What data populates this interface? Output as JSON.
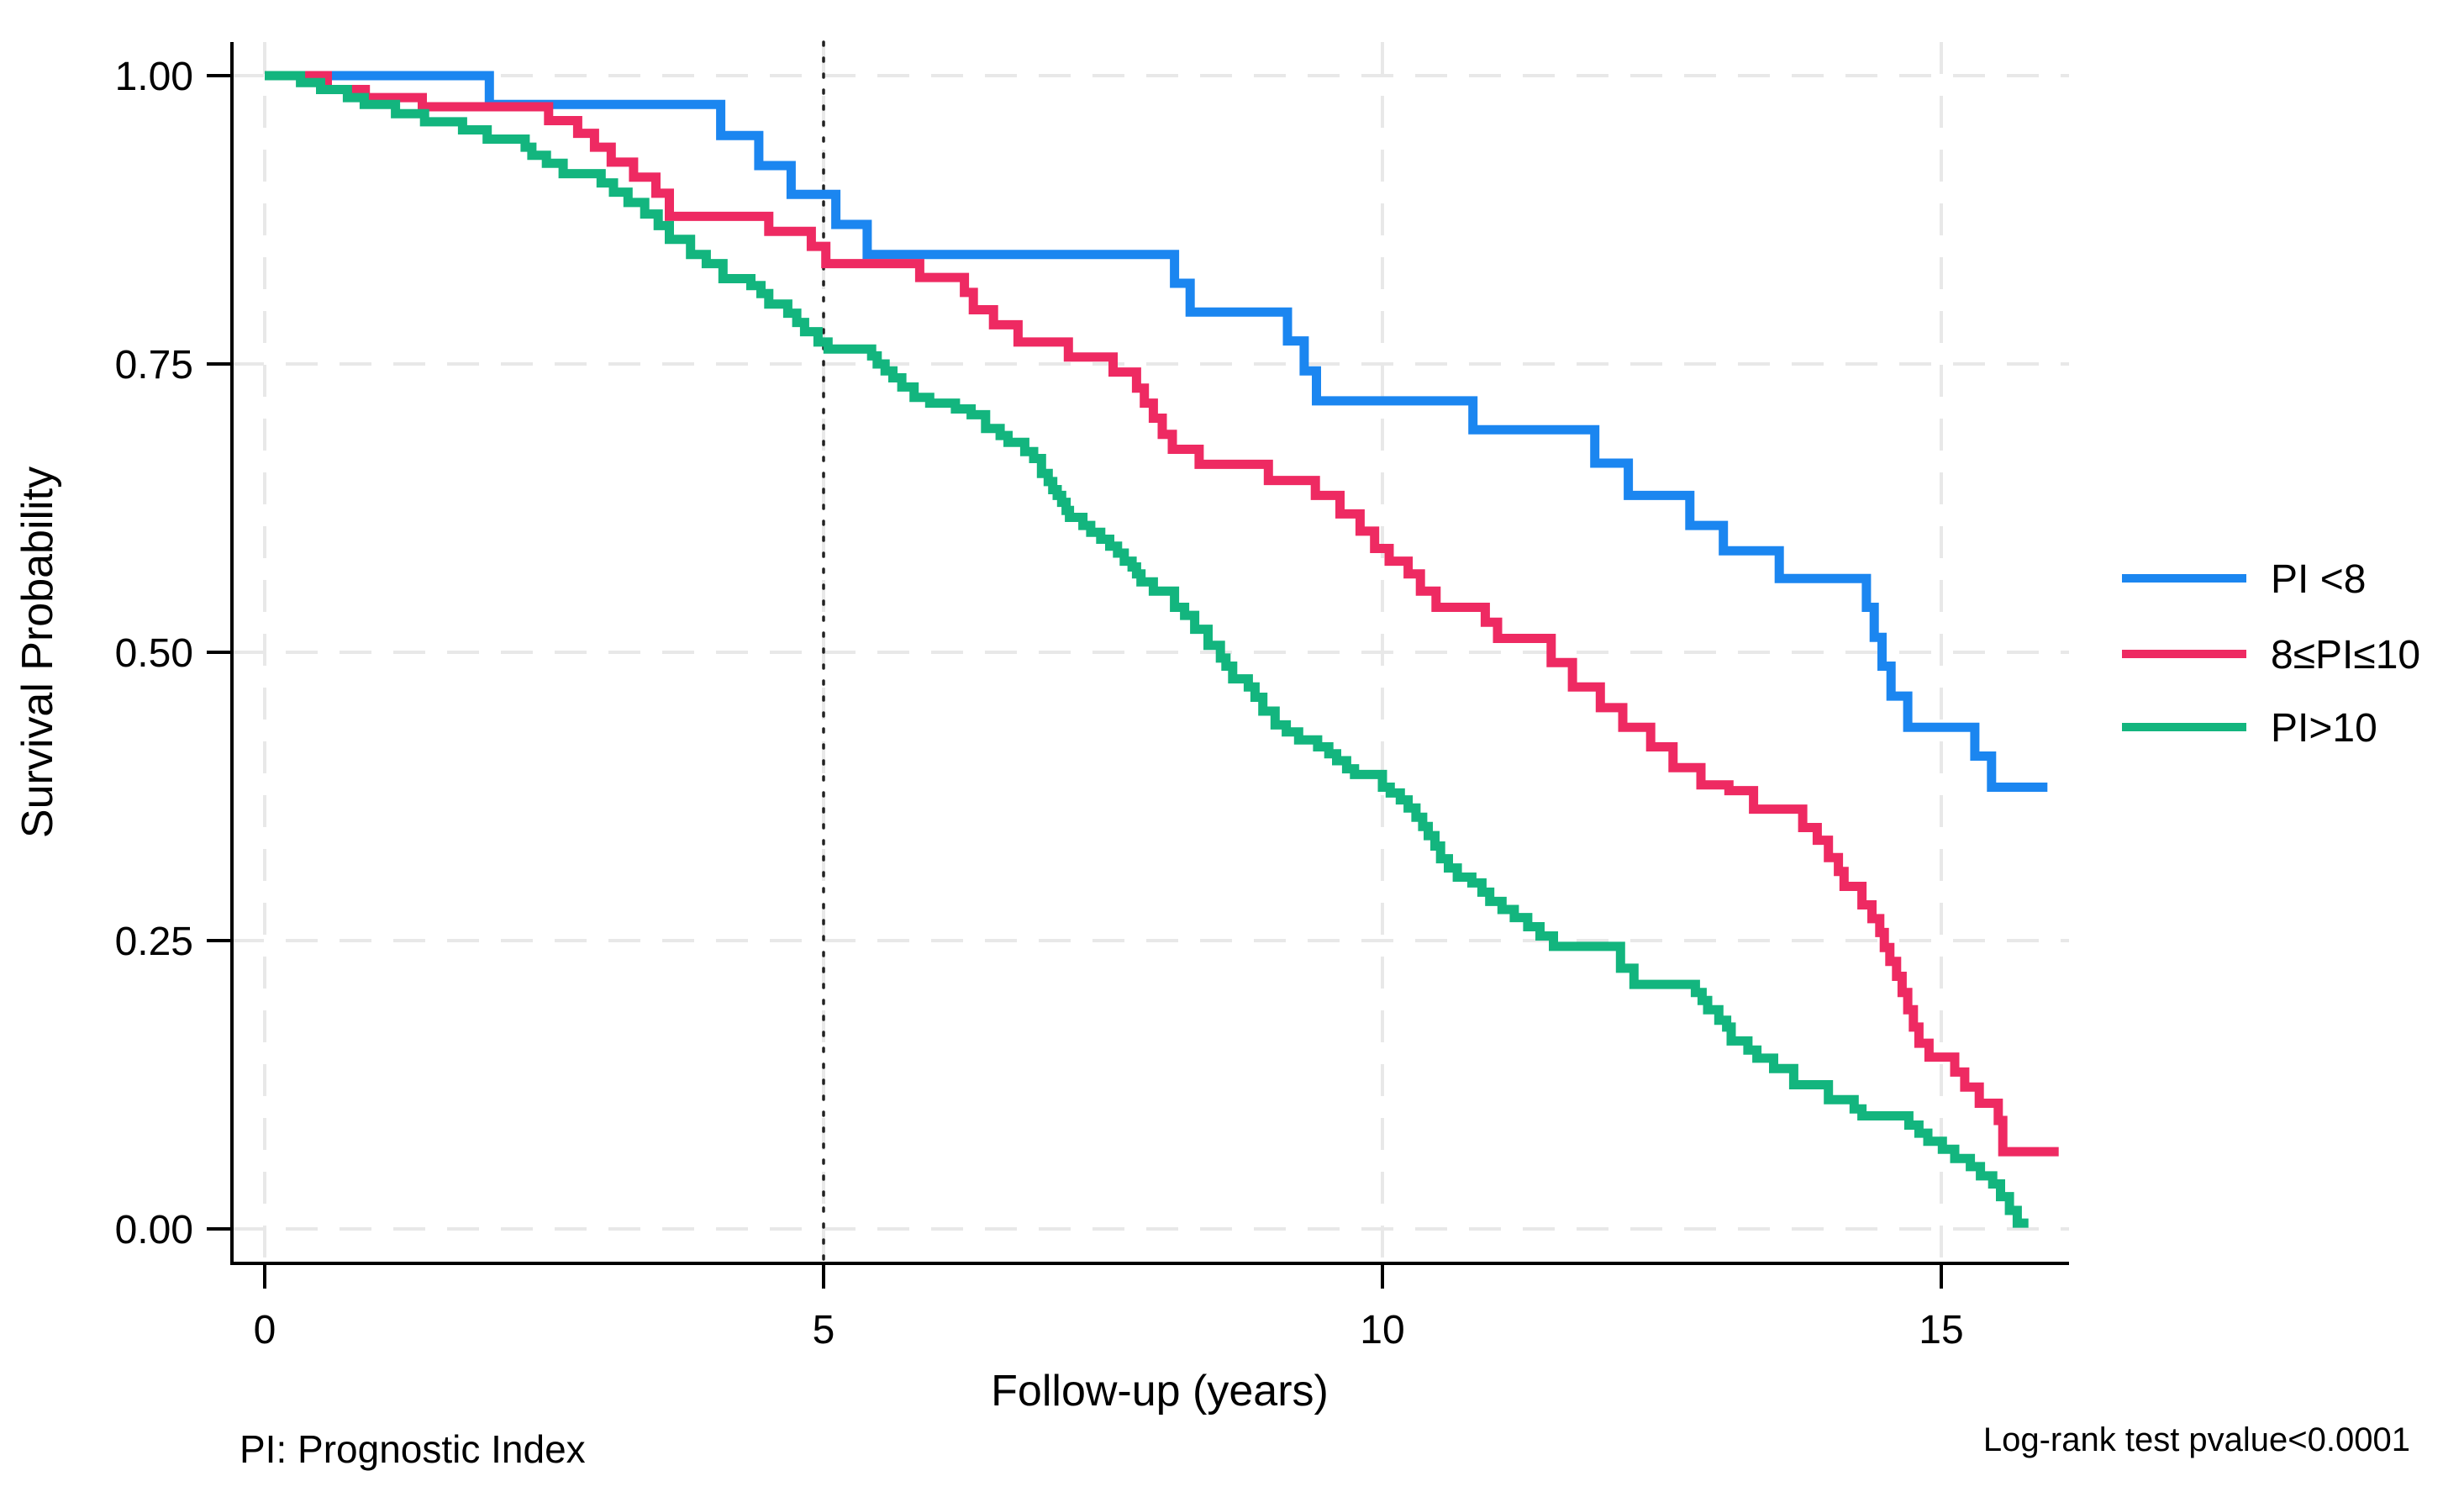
{
  "chart_data": {
    "type": "line",
    "subtype": "kaplan-meier-step-survival",
    "title": "",
    "xlabel": "Follow-up (years)",
    "ylabel": "Survival Probability",
    "xlim": [
      0,
      16.2
    ],
    "ylim": [
      0,
      1.0
    ],
    "xticks": [
      0,
      5,
      10,
      15
    ],
    "ytick_labels": [
      "0.00",
      "0.25",
      "0.50",
      "0.75",
      "1.00"
    ],
    "ytick_values": [
      0,
      0.25,
      0.5,
      0.75,
      1
    ],
    "grid": "dashed light-gray horizontal and vertical at ticks",
    "grid_color": "#e8e8e8",
    "reference_line_x": 5,
    "reference_line_style": "black dotted vertical",
    "legend_position": "right",
    "series": [
      {
        "name": "PI <8",
        "color": "#1b86f0",
        "end_t": 15.95,
        "steps": [
          [
            0,
            1.0
          ],
          [
            2.01,
            0.975
          ],
          [
            4.08,
            0.948
          ],
          [
            4.42,
            0.922
          ],
          [
            4.71,
            0.897
          ],
          [
            5.11,
            0.871
          ],
          [
            5.39,
            0.845
          ],
          [
            8.14,
            0.82
          ],
          [
            8.28,
            0.795
          ],
          [
            9.15,
            0.77
          ],
          [
            9.3,
            0.744
          ],
          [
            9.41,
            0.718
          ],
          [
            10.81,
            0.693
          ],
          [
            11.9,
            0.664
          ],
          [
            12.2,
            0.636
          ],
          [
            12.75,
            0.61
          ],
          [
            13.05,
            0.588
          ],
          [
            13.55,
            0.564
          ],
          [
            14.33,
            0.539
          ],
          [
            14.4,
            0.513
          ],
          [
            14.47,
            0.488
          ],
          [
            14.55,
            0.462
          ],
          [
            14.7,
            0.435
          ],
          [
            15.3,
            0.41
          ],
          [
            15.45,
            0.383
          ]
        ]
      },
      {
        "name": "8≤PI≤10",
        "color": "#ee2a62",
        "end_t": 16.05,
        "steps": [
          [
            0,
            1.0
          ],
          [
            0.56,
            0.988
          ],
          [
            0.9,
            0.981
          ],
          [
            1.41,
            0.973
          ],
          [
            2.54,
            0.961
          ],
          [
            2.8,
            0.95
          ],
          [
            2.95,
            0.938
          ],
          [
            3.1,
            0.925
          ],
          [
            3.3,
            0.912
          ],
          [
            3.5,
            0.898
          ],
          [
            3.62,
            0.878
          ],
          [
            4.51,
            0.865
          ],
          [
            4.89,
            0.852
          ],
          [
            5.02,
            0.837
          ],
          [
            5.86,
            0.825
          ],
          [
            6.26,
            0.812
          ],
          [
            6.34,
            0.797
          ],
          [
            6.52,
            0.784
          ],
          [
            6.74,
            0.769
          ],
          [
            7.19,
            0.756
          ],
          [
            7.59,
            0.743
          ],
          [
            7.8,
            0.729
          ],
          [
            7.87,
            0.716
          ],
          [
            7.95,
            0.703
          ],
          [
            8.03,
            0.689
          ],
          [
            8.12,
            0.676
          ],
          [
            8.36,
            0.663
          ],
          [
            8.98,
            0.649
          ],
          [
            9.4,
            0.636
          ],
          [
            9.62,
            0.62
          ],
          [
            9.8,
            0.605
          ],
          [
            9.93,
            0.59
          ],
          [
            10.06,
            0.579
          ],
          [
            10.23,
            0.568
          ],
          [
            10.34,
            0.553
          ],
          [
            10.48,
            0.539
          ],
          [
            10.92,
            0.526
          ],
          [
            11.03,
            0.512
          ],
          [
            11.51,
            0.491
          ],
          [
            11.7,
            0.47
          ],
          [
            11.95,
            0.452
          ],
          [
            12.15,
            0.435
          ],
          [
            12.4,
            0.418
          ],
          [
            12.6,
            0.4
          ],
          [
            12.85,
            0.385
          ],
          [
            13.1,
            0.38
          ],
          [
            13.32,
            0.364
          ],
          [
            13.76,
            0.348
          ],
          [
            13.89,
            0.337
          ],
          [
            13.99,
            0.322
          ],
          [
            14.08,
            0.31
          ],
          [
            14.13,
            0.297
          ],
          [
            14.29,
            0.281
          ],
          [
            14.38,
            0.269
          ],
          [
            14.45,
            0.257
          ],
          [
            14.49,
            0.244
          ],
          [
            14.54,
            0.232
          ],
          [
            14.6,
            0.219
          ],
          [
            14.65,
            0.205
          ],
          [
            14.7,
            0.19
          ],
          [
            14.75,
            0.175
          ],
          [
            14.8,
            0.161
          ],
          [
            14.89,
            0.149
          ],
          [
            15.12,
            0.136
          ],
          [
            15.21,
            0.123
          ],
          [
            15.34,
            0.109
          ],
          [
            15.51,
            0.094
          ],
          [
            15.55,
            0.067
          ]
        ]
      },
      {
        "name": "PI>10",
        "color": "#13b57e",
        "end_t": 15.78,
        "steps": [
          [
            0,
            1.0
          ],
          [
            0.32,
            0.994
          ],
          [
            0.5,
            0.988
          ],
          [
            0.74,
            0.981
          ],
          [
            0.89,
            0.975
          ],
          [
            1.17,
            0.967
          ],
          [
            1.43,
            0.96
          ],
          [
            1.77,
            0.953
          ],
          [
            1.99,
            0.945
          ],
          [
            2.33,
            0.938
          ],
          [
            2.39,
            0.931
          ],
          [
            2.52,
            0.924
          ],
          [
            2.67,
            0.915
          ],
          [
            3.01,
            0.907
          ],
          [
            3.12,
            0.899
          ],
          [
            3.25,
            0.89
          ],
          [
            3.4,
            0.88
          ],
          [
            3.52,
            0.87
          ],
          [
            3.62,
            0.858
          ],
          [
            3.81,
            0.845
          ],
          [
            3.95,
            0.837
          ],
          [
            4.1,
            0.824
          ],
          [
            4.35,
            0.818
          ],
          [
            4.44,
            0.811
          ],
          [
            4.51,
            0.802
          ],
          [
            4.68,
            0.794
          ],
          [
            4.76,
            0.786
          ],
          [
            4.83,
            0.778
          ],
          [
            4.95,
            0.769
          ],
          [
            5.04,
            0.763
          ],
          [
            5.43,
            0.757
          ],
          [
            5.48,
            0.75
          ],
          [
            5.55,
            0.744
          ],
          [
            5.62,
            0.738
          ],
          [
            5.7,
            0.73
          ],
          [
            5.81,
            0.721
          ],
          [
            5.95,
            0.716
          ],
          [
            6.18,
            0.711
          ],
          [
            6.32,
            0.706
          ],
          [
            6.45,
            0.694
          ],
          [
            6.58,
            0.688
          ],
          [
            6.65,
            0.682
          ],
          [
            6.8,
            0.674
          ],
          [
            6.88,
            0.668
          ],
          [
            6.95,
            0.655
          ],
          [
            7.01,
            0.648
          ],
          [
            7.05,
            0.641
          ],
          [
            7.09,
            0.636
          ],
          [
            7.13,
            0.63
          ],
          [
            7.17,
            0.623
          ],
          [
            7.2,
            0.617
          ],
          [
            7.32,
            0.61
          ],
          [
            7.39,
            0.604
          ],
          [
            7.48,
            0.598
          ],
          [
            7.56,
            0.592
          ],
          [
            7.63,
            0.586
          ],
          [
            7.69,
            0.579
          ],
          [
            7.76,
            0.574
          ],
          [
            7.8,
            0.568
          ],
          [
            7.84,
            0.561
          ],
          [
            7.95,
            0.553
          ],
          [
            8.14,
            0.539
          ],
          [
            8.23,
            0.532
          ],
          [
            8.32,
            0.52
          ],
          [
            8.44,
            0.506
          ],
          [
            8.55,
            0.495
          ],
          [
            8.6,
            0.488
          ],
          [
            8.66,
            0.477
          ],
          [
            8.8,
            0.47
          ],
          [
            8.86,
            0.461
          ],
          [
            8.93,
            0.449
          ],
          [
            9.04,
            0.437
          ],
          [
            9.14,
            0.431
          ],
          [
            9.25,
            0.424
          ],
          [
            9.42,
            0.418
          ],
          [
            9.52,
            0.412
          ],
          [
            9.59,
            0.406
          ],
          [
            9.68,
            0.399
          ],
          [
            9.75,
            0.394
          ],
          [
            10.0,
            0.383
          ],
          [
            10.07,
            0.378
          ],
          [
            10.16,
            0.372
          ],
          [
            10.23,
            0.365
          ],
          [
            10.3,
            0.357
          ],
          [
            10.36,
            0.349
          ],
          [
            10.41,
            0.341
          ],
          [
            10.47,
            0.332
          ],
          [
            10.52,
            0.321
          ],
          [
            10.59,
            0.313
          ],
          [
            10.67,
            0.305
          ],
          [
            10.8,
            0.3
          ],
          [
            10.89,
            0.292
          ],
          [
            10.96,
            0.284
          ],
          [
            11.07,
            0.277
          ],
          [
            11.18,
            0.27
          ],
          [
            11.3,
            0.262
          ],
          [
            11.41,
            0.254
          ],
          [
            11.53,
            0.245
          ],
          [
            12.13,
            0.226
          ],
          [
            12.25,
            0.212
          ],
          [
            12.8,
            0.205
          ],
          [
            12.86,
            0.198
          ],
          [
            12.91,
            0.19
          ],
          [
            13.01,
            0.181
          ],
          [
            13.08,
            0.175
          ],
          [
            13.12,
            0.163
          ],
          [
            13.27,
            0.155
          ],
          [
            13.35,
            0.148
          ],
          [
            13.5,
            0.139
          ],
          [
            13.68,
            0.125
          ],
          [
            13.99,
            0.112
          ],
          [
            14.22,
            0.104
          ],
          [
            14.29,
            0.098
          ],
          [
            14.71,
            0.09
          ],
          [
            14.8,
            0.083
          ],
          [
            14.88,
            0.076
          ],
          [
            15.01,
            0.069
          ],
          [
            15.12,
            0.061
          ],
          [
            15.26,
            0.054
          ],
          [
            15.35,
            0.046
          ],
          [
            15.46,
            0.039
          ],
          [
            15.53,
            0.028
          ],
          [
            15.61,
            0.016
          ],
          [
            15.68,
            0.005
          ]
        ]
      }
    ]
  },
  "annotations": {
    "footnote_left": "PI: Prognostic Index",
    "footnote_right": "Log-rank test pvalue<0.0001"
  }
}
